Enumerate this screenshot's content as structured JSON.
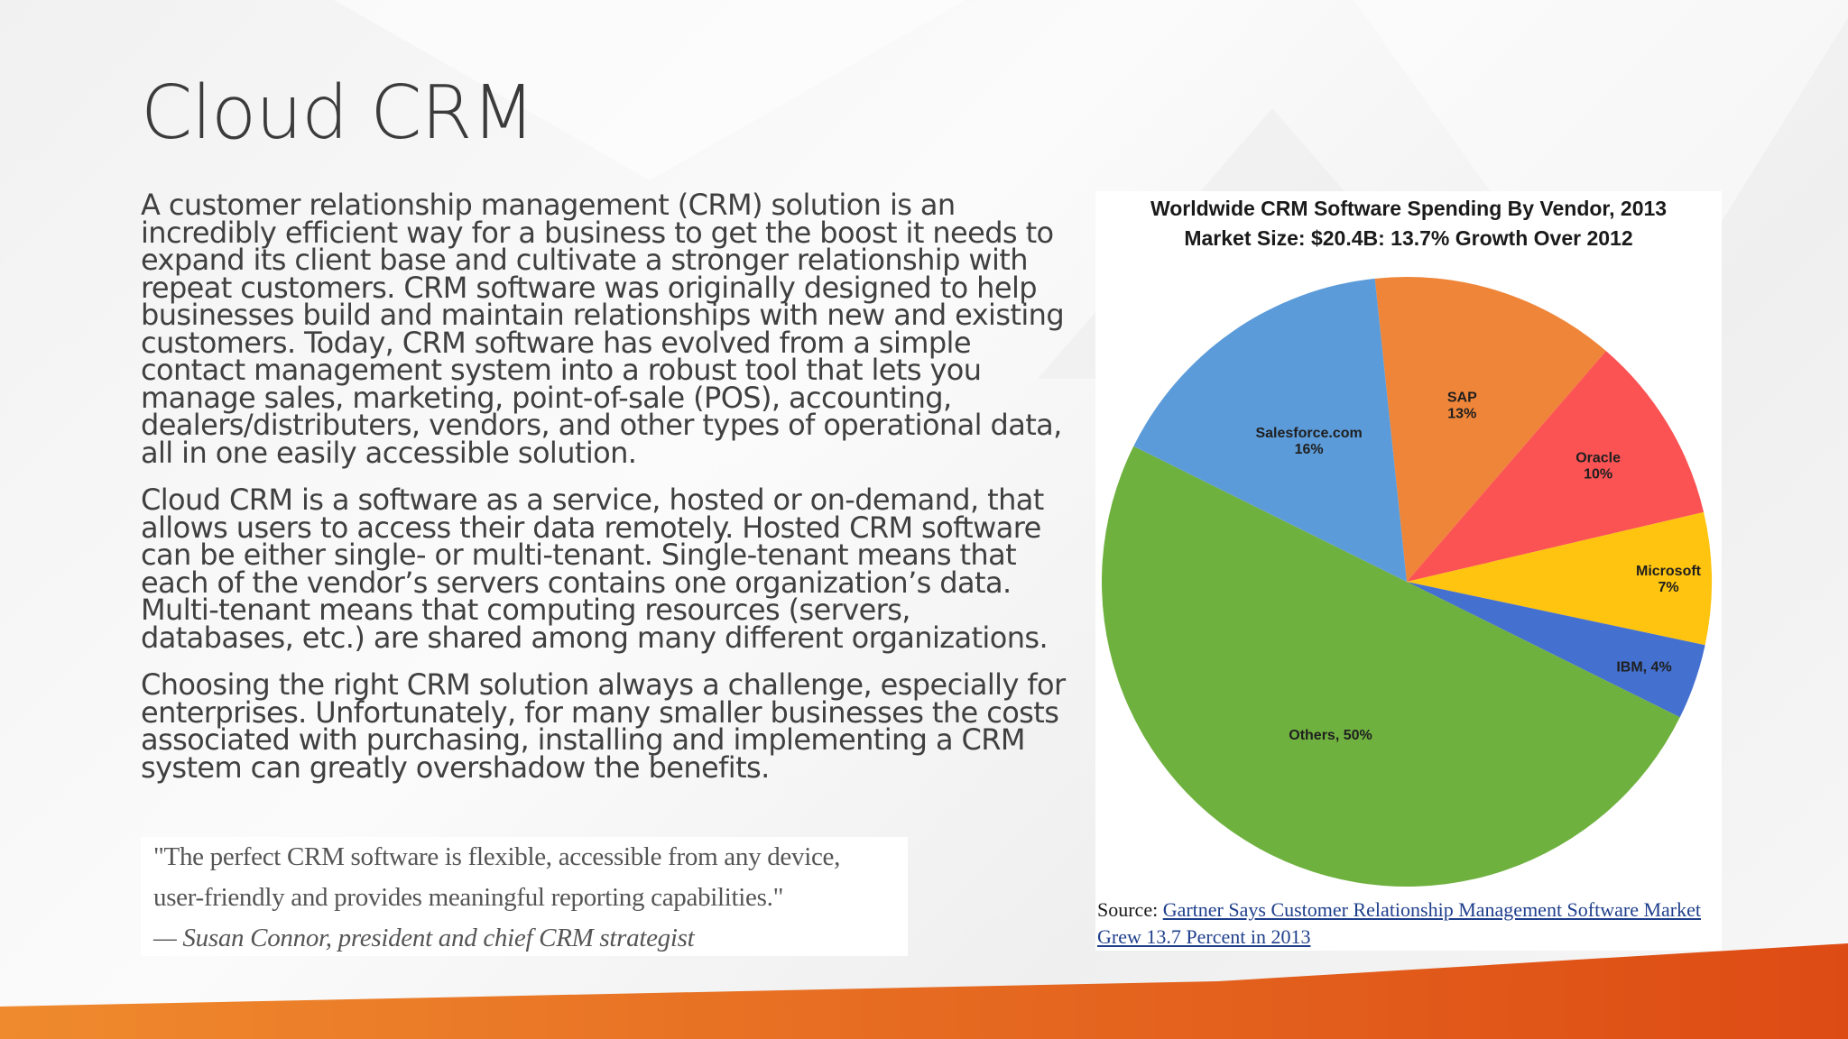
{
  "slide": {
    "title": "Cloud CRM",
    "paragraphs": [
      "A customer relationship management (CRM) solution is an incredibly efficient way for a business to get the boost it needs to expand its client base and cultivate a stronger relationship with repeat customers. CRM software was originally designed to help businesses build and maintain relationships with new and existing customers. Today, CRM software has evolved from a simple contact management system into a robust tool that lets you manage sales, marketing, point-of-sale (POS), accounting, dealers/distributers, vendors, and other types of operational data, all in one easily accessible solution.",
      "Cloud CRM is a software as a service, hosted or on-demand, that allows users to access their data remotely. Hosted CRM software can be either single- or multi-tenant. Single-tenant means that each of the vendor’s servers contains one organization’s data. Multi-tenant means that computing resources (servers, databases, etc.) are shared among many different organizations.",
      "Choosing the right CRM solution always a challenge, especially for enterprises. Unfortunately, for many smaller businesses the costs associated with purchasing, installing and implementing a CRM system can greatly overshadow the benefits."
    ],
    "quote": {
      "line1": "\"The perfect CRM software is flexible, accessible from any device,",
      "line2": "user-friendly and provides meaningful reporting capabilities.\"",
      "attribution": "— Susan Connor, president and chief CRM strategist"
    },
    "source": {
      "prefix": "Source: ",
      "link_text": "Gartner Says Customer Relationship Management Software Market Grew 13.7 Percent in 2013"
    },
    "colors": {
      "accent_orange": "#e0521c",
      "accent_orange_light": "#ef8a2e"
    }
  },
  "chart_data": {
    "type": "pie",
    "title": "Worldwide CRM Software Spending By Vendor, 2013",
    "subtitle": "Market Size: $20.4B: 13.7% Growth Over 2012",
    "categories": [
      "SAP",
      "Oracle",
      "Microsoft",
      "IBM",
      "Others",
      "Salesforce.com"
    ],
    "values": [
      13,
      10,
      7,
      4,
      50,
      16
    ],
    "labels": [
      [
        "SAP",
        "13%"
      ],
      [
        "Oracle",
        "10%"
      ],
      [
        "Microsoft",
        "7%"
      ],
      [
        "IBM, 4%"
      ],
      [
        "Others, 50%"
      ],
      [
        "Salesforce.com",
        "16%"
      ]
    ],
    "colors": [
      "#ef8539",
      "#fb5353",
      "#fec40f",
      "#4470d0",
      "#6fb13f",
      "#5b9bd9"
    ],
    "legend": "none"
  }
}
